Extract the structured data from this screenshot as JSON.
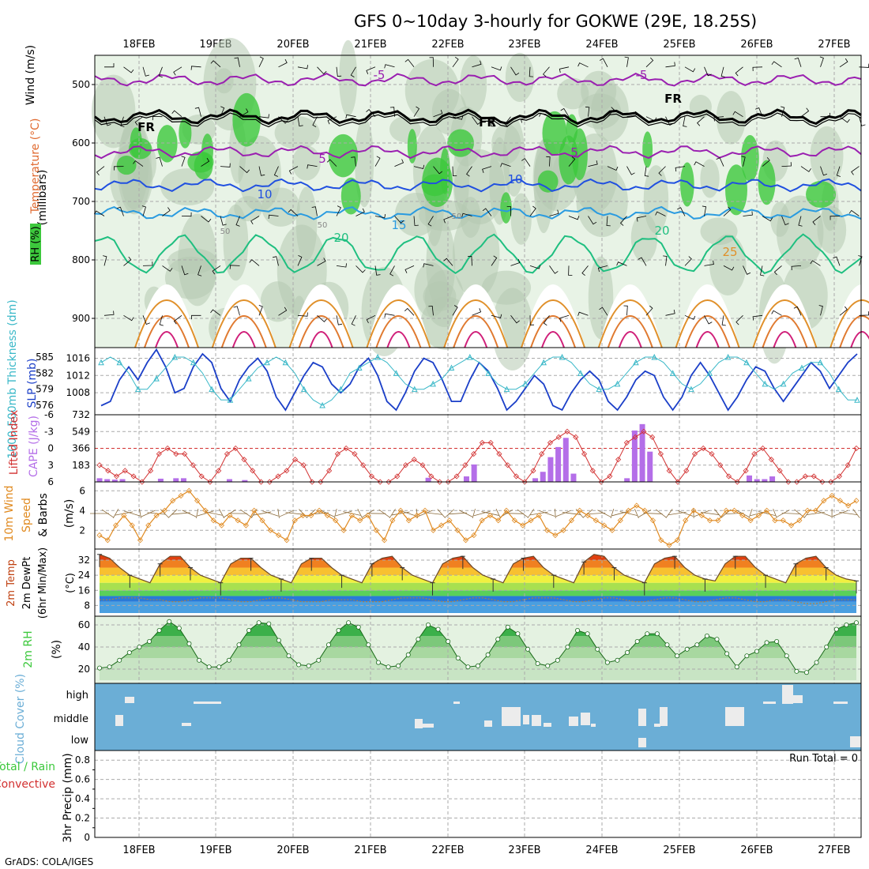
{
  "title": "GFS 0~10day 3-hourly for GOKWE (29E, 18.25S)",
  "footer": "GrADS: COLA/IGES",
  "run_total_label": "Run Total = 0",
  "colors": {
    "rh_green": "#3cc83c",
    "temp_purple": "#9a1fb0",
    "temp_blue": "#2050e0",
    "temp_cyan": "#2a9be0",
    "temp_teal": "#1fbf80",
    "temp_orange": "#e0902a",
    "slp_blue": "#1b3fc8",
    "thick_cyan": "#3ab8c8",
    "cape_purple": "#b46ee8",
    "li_red": "#d23030",
    "wind_orange": "#e08a20",
    "cloud_blue": "#6baed6"
  },
  "chart_data": [
    {
      "type": "heatmap",
      "panel": "upper-air",
      "ylabel": "(millibars)",
      "side_labels": [
        "Wind (m/s)",
        "Temperature (°C)",
        "RH (%)"
      ],
      "yticks": [
        500,
        600,
        700,
        800,
        900
      ],
      "ylim": [
        450,
        950
      ],
      "x_dates": [
        "18FEB",
        "19FEB",
        "20FEB",
        "21FEB",
        "22FEB",
        "23FEB",
        "24FEB",
        "25FEB",
        "26FEB",
        "27FEB"
      ],
      "contour_labels": [
        {
          "text": "-5",
          "value": -5
        },
        {
          "text": "-5",
          "value": -5
        },
        {
          "text": "FR",
          "value": 0
        },
        {
          "text": "FR",
          "value": 0
        },
        {
          "text": "FR",
          "value": 0
        },
        {
          "text": "5",
          "value": 5
        },
        {
          "text": "5",
          "value": 5
        },
        {
          "text": "10",
          "value": 10
        },
        {
          "text": "10",
          "value": 10
        },
        {
          "text": "15",
          "value": 15
        },
        {
          "text": "20",
          "value": 20
        },
        {
          "text": "20",
          "value": 20
        },
        {
          "text": "25",
          "value": 25
        },
        {
          "text": "50",
          "value": 50
        },
        {
          "text": "50",
          "value": 50
        },
        {
          "text": "50",
          "value": 50
        }
      ],
      "isotherm_levels_mb": {
        "-5": 492,
        "0": 555,
        "5": 615,
        "10": 672,
        "15": 720,
        "20": 790
      }
    },
    {
      "type": "line",
      "panel": "slp-thickness",
      "ylabel_left": "1000-500mb Thickness (dm)",
      "ylabel_right": "SLP (mb)",
      "left_ticks": [
        585,
        582,
        579,
        576
      ],
      "right_ticks": [
        1016,
        1012,
        1008
      ],
      "series": [
        {
          "name": "SLP (mb)",
          "values": [
            1005,
            1006,
            1011,
            1014,
            1011,
            1015,
            1018,
            1014,
            1008,
            1009,
            1014,
            1017,
            1015,
            1009,
            1006,
            1011,
            1014,
            1016,
            1013,
            1007,
            1004,
            1008,
            1012,
            1015,
            1014,
            1010,
            1008,
            1010,
            1014,
            1016,
            1012,
            1006,
            1004,
            1008,
            1013,
            1016,
            1015,
            1011,
            1006,
            1006,
            1011,
            1015,
            1013,
            1009,
            1004,
            1006,
            1009,
            1012,
            1010,
            1005,
            1004,
            1008,
            1011,
            1013,
            1011,
            1006,
            1004,
            1007,
            1011,
            1013,
            1012,
            1007,
            1004,
            1007,
            1012,
            1015,
            1012,
            1008,
            1004,
            1007,
            1011,
            1014,
            1013,
            1009,
            1006,
            1009,
            1012,
            1015,
            1013,
            1009,
            1012,
            1015,
            1017
          ]
        },
        {
          "name": "1000-500mb Thickness (dm)",
          "values": [
            584,
            585,
            584,
            582,
            579,
            579,
            581,
            583,
            585,
            585,
            584,
            582,
            579,
            577,
            577,
            579,
            581,
            583,
            584,
            585,
            584,
            582,
            579,
            577,
            576,
            577,
            579,
            582,
            583,
            584,
            585,
            584,
            582,
            580,
            579,
            579,
            580,
            581,
            583,
            584,
            585,
            584,
            582,
            580,
            579,
            579,
            580,
            582,
            584,
            585,
            585,
            584,
            582,
            580,
            579,
            579,
            580,
            582,
            584,
            585,
            585,
            584,
            582,
            580,
            579,
            580,
            582,
            584,
            585,
            585,
            584,
            582,
            580,
            579,
            580,
            582,
            583,
            584,
            584,
            582,
            579,
            577,
            577
          ]
        }
      ]
    },
    {
      "type": "bar",
      "panel": "cape-li",
      "ylabel_left": "Lifted Index",
      "ylabel_right": "CAPE (J/kg)",
      "left_ticks": [
        "-6",
        "-3",
        "0",
        "3",
        "6"
      ],
      "right_ticks": [
        "732",
        "549",
        "366",
        "183"
      ],
      "series": [
        {
          "name": "CAPE (J/kg)",
          "values": [
            40,
            30,
            25,
            30,
            0,
            0,
            0,
            0,
            35,
            0,
            40,
            40,
            0,
            0,
            0,
            0,
            0,
            30,
            0,
            20,
            0,
            0,
            0,
            0,
            0,
            0,
            0,
            0,
            0,
            0,
            0,
            0,
            0,
            0,
            0,
            0,
            0,
            0,
            0,
            0,
            0,
            0,
            0,
            45,
            0,
            0,
            0,
            0,
            60,
            190,
            0,
            0,
            0,
            0,
            0,
            0,
            0,
            40,
            110,
            270,
            380,
            480,
            90,
            0,
            0,
            0,
            0,
            0,
            0,
            40,
            560,
            630,
            330,
            0,
            0,
            0,
            0,
            0,
            0,
            0,
            0,
            0,
            0,
            0,
            0,
            70,
            30,
            30,
            60,
            0,
            0,
            0,
            0,
            0,
            0,
            0,
            0,
            0,
            0,
            0
          ]
        },
        {
          "name": "Lifted Index",
          "values": [
            3,
            4,
            5,
            4,
            5,
            6,
            4,
            1,
            0,
            1,
            1,
            3,
            5,
            6,
            4,
            1,
            0,
            2,
            4,
            6,
            6,
            5,
            4,
            2,
            3,
            6,
            6,
            4,
            1,
            0,
            1,
            3,
            5,
            6,
            6,
            5,
            3,
            2,
            3,
            5,
            6,
            6,
            5,
            3,
            1,
            -1,
            -1,
            1,
            3,
            5,
            6,
            4,
            1,
            -1,
            -2,
            -3,
            -2,
            1,
            4,
            6,
            5,
            2,
            -1,
            -2,
            -3,
            -2,
            1,
            4,
            6,
            4,
            1,
            0,
            1,
            3,
            5,
            6,
            4,
            1,
            0,
            2,
            4,
            6,
            6,
            5,
            5,
            6,
            6,
            5,
            3,
            0
          ]
        }
      ]
    },
    {
      "type": "line",
      "panel": "wind10m",
      "ylabel": "10m Wind Speed & Barbs (m/s)",
      "ticks": [
        6,
        4,
        2
      ],
      "series": [
        {
          "name": "Speed",
          "values": [
            1.5,
            1,
            2.5,
            3.5,
            2.5,
            1,
            2.5,
            3.5,
            4,
            5,
            5.5,
            6,
            5,
            4,
            3,
            2.5,
            3.5,
            3,
            2.5,
            4,
            3,
            2,
            1.5,
            1,
            3,
            3.5,
            3.5,
            4,
            3.5,
            3,
            2,
            3.5,
            3,
            3.5,
            2,
            1,
            3,
            4,
            3,
            3.5,
            4,
            2,
            2.5,
            3,
            2,
            1,
            1.5,
            3,
            3.5,
            3,
            4,
            3,
            2.5,
            3,
            3.5,
            2,
            1.5,
            2,
            3,
            4,
            3.5,
            3,
            2.5,
            2,
            3,
            4,
            4.5,
            4,
            3,
            1,
            0.5,
            1,
            3,
            4,
            3.5,
            3,
            3,
            4,
            4,
            3.5,
            3,
            3.5,
            4,
            3,
            3,
            2.5,
            3,
            4,
            4,
            5,
            5.5,
            5,
            4.5,
            5
          ]
        }
      ]
    },
    {
      "type": "area",
      "panel": "temp2m",
      "ylabel": "2m Temp 2m DewPt (6hr Min/Max) (°C)",
      "ticks": [
        32,
        24,
        16,
        8
      ],
      "series": [
        {
          "name": "2m Temp",
          "values": [
            35,
            33,
            28,
            24,
            22,
            20,
            30,
            34,
            34,
            28,
            24,
            22,
            20,
            30,
            33,
            33,
            28,
            24,
            22,
            20,
            30,
            33,
            33,
            28,
            24,
            22,
            20,
            30,
            33,
            34,
            28,
            24,
            22,
            20,
            30,
            33,
            34,
            28,
            24,
            22,
            20,
            30,
            33,
            34,
            28,
            24,
            22,
            20,
            31,
            35,
            34,
            28,
            24,
            22,
            20,
            30,
            33,
            34,
            28,
            24,
            22,
            21,
            30,
            34,
            34,
            28,
            24,
            22,
            20,
            30,
            33,
            34,
            28,
            24,
            22,
            21
          ]
        },
        {
          "name": "2m DewPt",
          "values": [
            11,
            11,
            12,
            12,
            12,
            11,
            11,
            10,
            10,
            11,
            12,
            12,
            12,
            11,
            10,
            10,
            11,
            12,
            12,
            11,
            10,
            10,
            10,
            11,
            11,
            11,
            10,
            10,
            10,
            11,
            12,
            12,
            12,
            11,
            10,
            10,
            11,
            12,
            12,
            11,
            10,
            10,
            11,
            12,
            12,
            12,
            11,
            10,
            10,
            11,
            12,
            12,
            11,
            10,
            10,
            11,
            12,
            12,
            11,
            10,
            10,
            11,
            12,
            12,
            11,
            10,
            10,
            11,
            11,
            10,
            9,
            9,
            10,
            11,
            11,
            11
          ]
        }
      ]
    },
    {
      "type": "area",
      "panel": "rh2m",
      "ylabel": "2m RH (%)",
      "ticks": [
        60,
        40,
        20
      ],
      "series": [
        {
          "name": "2m RH",
          "values": [
            21,
            22,
            28,
            35,
            40,
            45,
            55,
            63,
            57,
            43,
            28,
            22,
            22,
            28,
            42,
            55,
            62,
            61,
            46,
            32,
            24,
            23,
            28,
            42,
            55,
            62,
            58,
            42,
            26,
            22,
            23,
            33,
            47,
            60,
            56,
            45,
            30,
            22,
            23,
            33,
            47,
            58,
            52,
            38,
            25,
            23,
            28,
            40,
            55,
            52,
            38,
            26,
            28,
            35,
            45,
            52,
            52,
            42,
            32,
            38,
            42,
            50,
            47,
            34,
            22,
            32,
            36,
            44,
            45,
            32,
            18,
            17,
            26,
            40,
            56,
            60,
            62
          ]
        }
      ]
    },
    {
      "type": "heatmap",
      "panel": "cloud",
      "ylabel": "Cloud Cover (%)",
      "rows": [
        "high",
        "middle",
        "low"
      ]
    },
    {
      "type": "bar",
      "panel": "precip",
      "ylabel": "3hr Precip (mm)",
      "side_labels": [
        "Total / Rain",
        "Convective"
      ],
      "ticks": [
        "0.8",
        "0.6",
        "0.4",
        "0.2",
        "0"
      ],
      "ylim": [
        0,
        0.9
      ],
      "x_dates": [
        "18FEB",
        "19FEB",
        "20FEB",
        "21FEB",
        "22FEB",
        "23FEB",
        "24FEB",
        "25FEB",
        "26FEB",
        "27FEB"
      ]
    }
  ]
}
